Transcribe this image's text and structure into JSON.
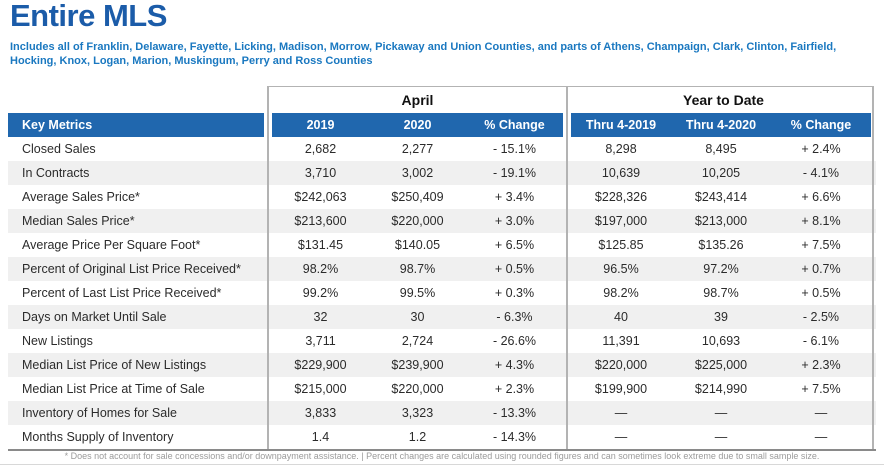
{
  "page": {
    "title": "Entire MLS",
    "subtitle": "Includes all of Franklin, Delaware, Fayette, Licking, Madison, Morrow, Pickaway and Union Counties, and parts of Athens, Champaign, Clark, Clinton, Fairfield, Hocking, Knox, Logan, Marion, Muskingum, Perry and Ross Counties",
    "footnote": "* Does not account for sale concessions and/or downpayment assistance. | Percent changes are calculated using rounded figures and can sometimes look extreme due to small sample size."
  },
  "colors": {
    "title_blue": "#1b5ca9",
    "subtitle_blue": "#1a78c0",
    "header_row_blue": "#2067ae",
    "stripe_gray": "#f0f0f0",
    "rule_gray": "#b3b3b3"
  },
  "table": {
    "group_headers": [
      "April",
      "Year to Date"
    ],
    "header": {
      "key_metrics": "Key Metrics",
      "columns": [
        "2019",
        "2020",
        "% Change",
        "Thru 4-2019",
        "Thru 4-2020",
        "% Change"
      ]
    },
    "rows": [
      {
        "metric": "Closed Sales",
        "values": [
          "2,682",
          "2,277",
          "- 15.1%",
          "8,298",
          "8,495",
          "+ 2.4%"
        ]
      },
      {
        "metric": "In Contracts",
        "values": [
          "3,710",
          "3,002",
          "- 19.1%",
          "10,639",
          "10,205",
          "- 4.1%"
        ]
      },
      {
        "metric": "Average Sales Price*",
        "values": [
          "$242,063",
          "$250,409",
          "+ 3.4%",
          "$228,326",
          "$243,414",
          "+ 6.6%"
        ]
      },
      {
        "metric": "Median Sales Price*",
        "values": [
          "$213,600",
          "$220,000",
          "+ 3.0%",
          "$197,000",
          "$213,000",
          "+ 8.1%"
        ]
      },
      {
        "metric": "Average Price Per Square Foot*",
        "values": [
          "$131.45",
          "$140.05",
          "+ 6.5%",
          "$125.85",
          "$135.26",
          "+ 7.5%"
        ]
      },
      {
        "metric": "Percent of Original List Price Received*",
        "values": [
          "98.2%",
          "98.7%",
          "+ 0.5%",
          "96.5%",
          "97.2%",
          "+ 0.7%"
        ]
      },
      {
        "metric": "Percent of Last List Price Received*",
        "values": [
          "99.2%",
          "99.5%",
          "+ 0.3%",
          "98.2%",
          "98.7%",
          "+ 0.5%"
        ]
      },
      {
        "metric": "Days on Market Until Sale",
        "values": [
          "32",
          "30",
          "- 6.3%",
          "40",
          "39",
          "- 2.5%"
        ]
      },
      {
        "metric": "New Listings",
        "values": [
          "3,711",
          "2,724",
          "- 26.6%",
          "11,391",
          "10,693",
          "- 6.1%"
        ]
      },
      {
        "metric": "Median List Price of New Listings",
        "values": [
          "$229,900",
          "$239,900",
          "+ 4.3%",
          "$220,000",
          "$225,000",
          "+ 2.3%"
        ]
      },
      {
        "metric": "Median List Price at Time of Sale",
        "values": [
          "$215,000",
          "$220,000",
          "+ 2.3%",
          "$199,900",
          "$214,990",
          "+ 7.5%"
        ]
      },
      {
        "metric": "Inventory of Homes for Sale",
        "values": [
          "3,833",
          "3,323",
          "- 13.3%",
          "—",
          "—",
          "—"
        ]
      },
      {
        "metric": "Months Supply of Inventory",
        "values": [
          "1.4",
          "1.2",
          "- 14.3%",
          "—",
          "—",
          "—"
        ]
      }
    ]
  }
}
